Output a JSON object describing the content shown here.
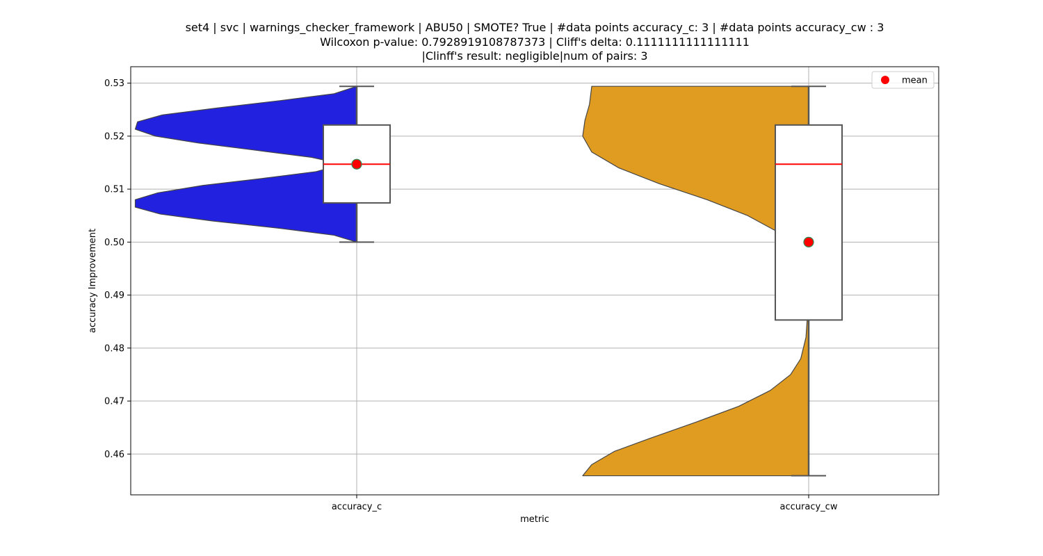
{
  "chart_data": {
    "type": "violin+box",
    "title_lines": [
      "set4 | svc | warnings_checker_framework | ABU50 | SMOTE? True | #data points accuracy_c: 3 | #data points accuracy_cw : 3",
      "Wilcoxon p-value: 0.7928919108787373 | Cliff's delta: 0.1111111111111111",
      "|Clinff's result: negligible|num of pairs: 3"
    ],
    "xlabel": "metric",
    "ylabel": "accuracy Improvement",
    "categories": [
      "accuracy_c",
      "accuracy_cw"
    ],
    "ylim": [
      0.4523,
      0.5331
    ],
    "yticks": [
      0.46,
      0.47,
      0.48,
      0.49,
      0.5,
      0.51,
      0.52,
      0.53
    ],
    "ytick_labels": [
      "0.46",
      "0.47",
      "0.48",
      "0.49",
      "0.50",
      "0.51",
      "0.52",
      "0.53"
    ],
    "grid": true,
    "legend": {
      "position": "top-right",
      "entries": [
        {
          "label": "mean",
          "marker": "red-dot"
        }
      ]
    },
    "series": [
      {
        "name": "accuracy_c",
        "violin_color": "#2121df",
        "violin_range": [
          0.5,
          0.5294
        ],
        "violin_profile": [
          [
            0.5,
            0.0
          ],
          [
            0.5013,
            0.1
          ],
          [
            0.5026,
            0.34
          ],
          [
            0.504,
            0.64
          ],
          [
            0.5053,
            0.87
          ],
          [
            0.5066,
            0.98
          ],
          [
            0.508,
            0.98
          ],
          [
            0.5093,
            0.88
          ],
          [
            0.5107,
            0.68
          ],
          [
            0.512,
            0.42
          ],
          [
            0.5133,
            0.18
          ],
          [
            0.5147,
            0.06
          ],
          [
            0.516,
            0.2
          ],
          [
            0.5173,
            0.44
          ],
          [
            0.5187,
            0.7
          ],
          [
            0.52,
            0.89
          ],
          [
            0.5213,
            0.98
          ],
          [
            0.5227,
            0.97
          ],
          [
            0.524,
            0.86
          ],
          [
            0.5253,
            0.62
          ],
          [
            0.5267,
            0.34
          ],
          [
            0.528,
            0.1
          ],
          [
            0.5294,
            0.0
          ]
        ],
        "box": {
          "whisker_low": 0.5,
          "q1": 0.5074,
          "median": 0.5147,
          "q3": 0.5221,
          "whisker_high": 0.5294
        },
        "mean": 0.5147
      },
      {
        "name": "accuracy_cw",
        "violin_color": "#e09c21",
        "violin_range": [
          0.4559,
          0.5294
        ],
        "violin_profile": [
          [
            0.4559,
            1.0
          ],
          [
            0.458,
            0.96
          ],
          [
            0.4605,
            0.86
          ],
          [
            0.463,
            0.7
          ],
          [
            0.466,
            0.5
          ],
          [
            0.469,
            0.31
          ],
          [
            0.472,
            0.17
          ],
          [
            0.475,
            0.08
          ],
          [
            0.478,
            0.035
          ],
          [
            0.482,
            0.012
          ],
          [
            0.487,
            0.004
          ],
          [
            0.492,
            0.008
          ],
          [
            0.496,
            0.03
          ],
          [
            0.499,
            0.07
          ],
          [
            0.502,
            0.14
          ],
          [
            0.505,
            0.27
          ],
          [
            0.508,
            0.45
          ],
          [
            0.511,
            0.66
          ],
          [
            0.514,
            0.84
          ],
          [
            0.517,
            0.96
          ],
          [
            0.52,
            1.0
          ],
          [
            0.523,
            0.99
          ],
          [
            0.526,
            0.97
          ],
          [
            0.5294,
            0.96
          ]
        ],
        "box": {
          "whisker_low": 0.4559,
          "q1": 0.4853,
          "median": 0.5147,
          "q3": 0.5221,
          "whisker_high": 0.5294
        },
        "mean": 0.5
      }
    ],
    "colors": {
      "mean_dot": "#ff0000",
      "mean_edge": "#2e8b57",
      "median": "#ff0000",
      "box_edge": "#555555",
      "grid": "#b0b0b0"
    }
  }
}
